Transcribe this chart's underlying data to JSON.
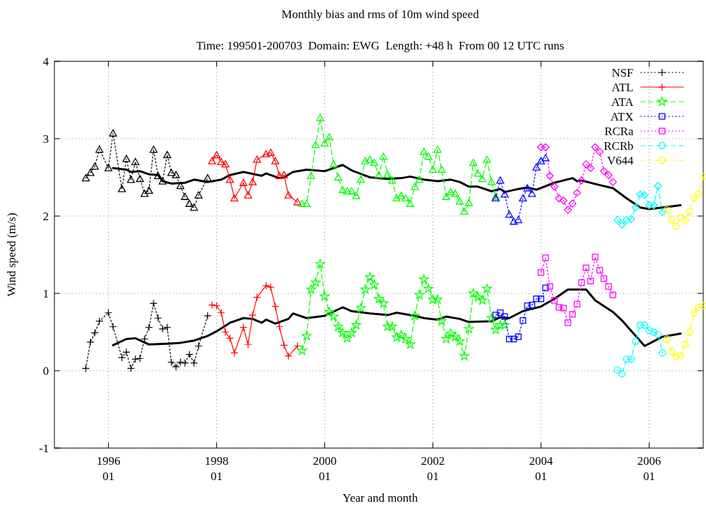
{
  "chart_data": {
    "type": "line",
    "title": "Monthly bias and rms of 10m wind speed",
    "subtitle": "Time: 199501-200703  Domain: EWG  Length: +48 h  From 00 12 UTC runs",
    "xlabel": "Year and month",
    "ylabel": "Wind speed (m/s)",
    "xlim": [
      "1995-01",
      "2007-01"
    ],
    "ylim": [
      -1,
      4
    ],
    "yticks": [
      -1,
      0,
      1,
      2,
      3,
      4
    ],
    "xticks": [
      {
        "value": "1996-01",
        "label": "1996\n01"
      },
      {
        "value": "1998-01",
        "label": "1998\n01"
      },
      {
        "value": "2000-01",
        "label": "2000\n01"
      },
      {
        "value": "2002-01",
        "label": "2002\n01"
      },
      {
        "value": "2004-01",
        "label": "2004\n01"
      },
      {
        "value": "2006-01",
        "label": "2006\n01"
      }
    ],
    "grid": true,
    "legend": "top right",
    "series": [
      {
        "name": "NSF",
        "color": "#000000",
        "marker": "cross",
        "line_style": "dotted",
        "x": [
          "1995-08",
          "1995-09",
          "1995-10",
          "1995-11",
          "1996-01",
          "1996-02",
          "1996-04",
          "1996-05",
          "1996-06",
          "1996-07",
          "1996-08",
          "1996-09",
          "1996-10",
          "1996-11",
          "1996-12",
          "1997-01",
          "1997-02",
          "1997-03",
          "1997-04",
          "1997-05",
          "1997-06",
          "1997-07",
          "1997-08",
          "1997-09",
          "1997-11"
        ],
        "values": [
          0.03,
          0.37,
          0.49,
          0.64,
          0.75,
          0.57,
          0.17,
          0.24,
          0.03,
          0.15,
          0.16,
          0.41,
          0.56,
          0.87,
          0.68,
          0.54,
          0.56,
          0.11,
          0.05,
          0.11,
          0.1,
          0.21,
          0.1,
          0.32,
          0.71
        ]
      },
      {
        "color": "#000000",
        "marker": "triangle",
        "line_style": "dotted",
        "x": [
          "1995-08",
          "1995-09",
          "1995-10",
          "1995-11",
          "1996-01",
          "1996-02",
          "1996-04",
          "1996-05",
          "1996-06",
          "1996-07",
          "1996-08",
          "1996-09",
          "1996-10",
          "1996-11",
          "1996-12",
          "1997-01",
          "1997-02",
          "1997-03",
          "1997-04",
          "1997-05",
          "1997-06",
          "1997-07",
          "1997-08",
          "1997-09",
          "1997-11"
        ],
        "values": [
          2.49,
          2.56,
          2.64,
          2.86,
          2.62,
          3.07,
          2.35,
          2.74,
          2.47,
          2.7,
          2.48,
          2.29,
          2.33,
          2.86,
          2.52,
          2.45,
          2.79,
          2.56,
          2.53,
          2.39,
          2.25,
          2.16,
          2.11,
          2.27,
          2.49
        ]
      },
      {
        "name": "ATL",
        "color": "#ff0000",
        "marker": "cross",
        "line_style": "solid",
        "x": [
          "1997-12",
          "1998-01",
          "1998-02",
          "1998-03",
          "1998-04",
          "1998-05",
          "1998-07",
          "1998-08",
          "1998-09",
          "1998-10",
          "1998-12",
          "1999-01",
          "1999-02",
          "1999-03",
          "1999-04",
          "1999-05",
          "1999-07"
        ],
        "values": [
          0.85,
          0.84,
          0.75,
          0.5,
          0.42,
          0.23,
          0.56,
          0.34,
          0.72,
          0.95,
          1.1,
          1.08,
          0.83,
          0.57,
          0.33,
          0.19,
          0.32
        ]
      },
      {
        "color": "#ff0000",
        "marker": "triangle",
        "line_style": "solid",
        "x": [
          "1997-12",
          "1998-01",
          "1998-02",
          "1998-03",
          "1998-04",
          "1998-05",
          "1998-07",
          "1998-08",
          "1998-09",
          "1998-10",
          "1998-12",
          "1999-01",
          "1999-02",
          "1999-03",
          "1999-04",
          "1999-05",
          "1999-07"
        ],
        "values": [
          2.71,
          2.79,
          2.7,
          2.67,
          2.47,
          2.23,
          2.43,
          2.27,
          2.44,
          2.73,
          2.8,
          2.82,
          2.71,
          2.52,
          2.53,
          2.27,
          2.18
        ]
      },
      {
        "name": "ATA",
        "color": "#00ff00",
        "marker": "star",
        "line_style": "dashed",
        "x": [
          "1999-08",
          "1999-09",
          "1999-10",
          "1999-11",
          "1999-12",
          "2000-01",
          "2000-02",
          "2000-03",
          "2000-04",
          "2000-05",
          "2000-06",
          "2000-07",
          "2000-08",
          "2000-09",
          "2000-10",
          "2000-11",
          "2000-12",
          "2001-01",
          "2001-02",
          "2001-03",
          "2001-04",
          "2001-05",
          "2001-06",
          "2001-07",
          "2001-08",
          "2001-09",
          "2001-10",
          "2001-11",
          "2001-12",
          "2002-01",
          "2002-02",
          "2002-03",
          "2002-04",
          "2002-05",
          "2002-06",
          "2002-07",
          "2002-08",
          "2002-09",
          "2002-10",
          "2002-11",
          "2002-12",
          "2003-01",
          "2003-02",
          "2003-03",
          "2003-04",
          "2003-05"
        ],
        "values": [
          0.26,
          0.45,
          1.05,
          1.14,
          1.38,
          0.96,
          0.76,
          0.7,
          0.57,
          0.49,
          0.42,
          0.49,
          0.59,
          0.81,
          1.05,
          1.21,
          1.11,
          0.93,
          0.87,
          0.57,
          0.57,
          0.43,
          0.46,
          0.41,
          0.34,
          0.71,
          0.98,
          1.18,
          1.06,
          0.92,
          0.92,
          0.64,
          0.41,
          0.48,
          0.44,
          0.38,
          0.19,
          0.54,
          1.0,
          0.95,
          0.91,
          1.06,
          0.68,
          0.53,
          0.59,
          0.59
        ]
      },
      {
        "color": "#00ff00",
        "marker": "triangle",
        "line_style": "dashed",
        "x": [
          "1999-08",
          "1999-09",
          "1999-10",
          "1999-11",
          "1999-12",
          "2000-01",
          "2000-02",
          "2000-03",
          "2000-04",
          "2000-05",
          "2000-06",
          "2000-07",
          "2000-08",
          "2000-09",
          "2000-10",
          "2000-11",
          "2000-12",
          "2001-01",
          "2001-02",
          "2001-03",
          "2001-04",
          "2001-05",
          "2001-06",
          "2001-07",
          "2001-08",
          "2001-09",
          "2001-10",
          "2001-11",
          "2001-12",
          "2002-01",
          "2002-02",
          "2002-03",
          "2002-04",
          "2002-05",
          "2002-06",
          "2002-07",
          "2002-08",
          "2002-09",
          "2002-10",
          "2002-11",
          "2002-12",
          "2003-01",
          "2003-02",
          "2003-03"
        ],
        "values": [
          2.16,
          2.16,
          2.52,
          2.92,
          3.27,
          2.94,
          3.02,
          2.67,
          2.5,
          2.34,
          2.32,
          2.32,
          2.26,
          2.47,
          2.71,
          2.73,
          2.69,
          2.53,
          2.77,
          2.54,
          2.46,
          2.23,
          2.26,
          2.23,
          2.16,
          2.38,
          2.47,
          2.83,
          2.77,
          2.6,
          2.86,
          2.6,
          2.25,
          2.31,
          2.29,
          2.19,
          2.06,
          2.17,
          2.69,
          2.55,
          2.48,
          2.73,
          2.44,
          2.25
        ]
      },
      {
        "name": "ATX",
        "color": "#0000ff",
        "marker": "square",
        "line_style": "dotted",
        "x": [
          "2003-03",
          "2003-04",
          "2003-05",
          "2003-06",
          "2003-07",
          "2003-08",
          "2003-09",
          "2003-10",
          "2003-11",
          "2003-12",
          "2004-01",
          "2004-02"
        ],
        "values": [
          0.72,
          0.75,
          0.7,
          0.41,
          0.41,
          0.44,
          0.65,
          0.84,
          0.85,
          0.93,
          0.93,
          1.07
        ]
      },
      {
        "color": "#0000ff",
        "marker": "triangle",
        "line_style": "dotted",
        "x": [
          "2003-03",
          "2003-04",
          "2003-05",
          "2003-06",
          "2003-07",
          "2003-08",
          "2003-09",
          "2003-10",
          "2003-11",
          "2003-12",
          "2004-01",
          "2004-02"
        ],
        "values": [
          2.23,
          2.46,
          2.28,
          2.02,
          1.93,
          1.95,
          2.23,
          2.36,
          2.29,
          2.63,
          2.71,
          2.75
        ]
      },
      {
        "name": "RCRa",
        "color": "#ff00ff",
        "marker": "square",
        "line_style": "dotted",
        "x": [
          "2004-01",
          "2004-02",
          "2004-03",
          "2004-04",
          "2004-05",
          "2004-06",
          "2004-07",
          "2004-08",
          "2004-09",
          "2004-10",
          "2004-11",
          "2004-12",
          "2005-01",
          "2005-02",
          "2005-03",
          "2005-04",
          "2005-05"
        ],
        "values": [
          1.27,
          1.46,
          1.09,
          0.91,
          0.82,
          0.81,
          0.62,
          0.73,
          0.86,
          1.14,
          1.33,
          1.16,
          1.47,
          1.3,
          1.19,
          1.09,
          0.98
        ]
      },
      {
        "color": "#ff00ff",
        "marker": "diamond",
        "line_style": "dotted",
        "x": [
          "2004-01",
          "2004-02",
          "2004-03",
          "2004-04",
          "2004-05",
          "2004-06",
          "2004-07",
          "2004-08",
          "2004-09",
          "2004-10",
          "2004-11",
          "2004-12",
          "2005-01",
          "2005-02",
          "2005-03",
          "2005-04",
          "2005-05"
        ],
        "values": [
          2.89,
          2.89,
          2.52,
          2.38,
          2.23,
          2.2,
          2.08,
          2.16,
          2.3,
          2.46,
          2.67,
          2.62,
          2.89,
          2.83,
          2.58,
          2.53,
          2.44
        ]
      },
      {
        "name": "RCRb",
        "color": "#00ffff",
        "marker": "circle",
        "line_style": "dashed",
        "x": [
          "2005-06",
          "2005-07",
          "2005-08",
          "2005-09",
          "2005-10",
          "2005-11",
          "2005-12",
          "2006-01",
          "2006-02",
          "2006-03",
          "2006-04"
        ],
        "values": [
          0.01,
          -0.04,
          0.15,
          0.15,
          0.38,
          0.59,
          0.59,
          0.52,
          0.5,
          0.47,
          0.23
        ]
      },
      {
        "color": "#00ffff",
        "marker": "diamond",
        "line_style": "dashed",
        "x": [
          "2005-06",
          "2005-07",
          "2005-08",
          "2005-09",
          "2005-10",
          "2005-11",
          "2005-12",
          "2006-01",
          "2006-02",
          "2006-03",
          "2006-04"
        ],
        "values": [
          1.95,
          1.89,
          1.95,
          1.96,
          2.11,
          2.28,
          2.27,
          2.14,
          2.14,
          2.39,
          2.05
        ]
      },
      {
        "name": "V644",
        "color": "#ffff00",
        "marker": "circle",
        "line_style": "dashed",
        "x": [
          "2006-05",
          "2006-06",
          "2006-07",
          "2006-08",
          "2006-09",
          "2006-10",
          "2006-11",
          "2006-12",
          "2007-01"
        ],
        "values": [
          0.41,
          0.25,
          0.18,
          0.2,
          0.34,
          0.5,
          0.75,
          0.82,
          0.84
        ]
      },
      {
        "color": "#ffff00",
        "marker": "circle",
        "line_style": "dashed",
        "x": [
          "2006-05",
          "2006-06",
          "2006-07",
          "2006-08",
          "2006-09",
          "2006-10",
          "2006-11",
          "2006-12",
          "2007-01"
        ],
        "values": [
          2.08,
          1.95,
          1.87,
          1.98,
          1.95,
          2.06,
          2.23,
          2.29,
          2.51
        ]
      },
      {
        "color": "#000000",
        "marker": "none",
        "line_style": "solid",
        "x": [
          "1996-02",
          "1996-05",
          "1996-06",
          "1996-08",
          "1996-10",
          "1996-12",
          "1997-01",
          "1997-03",
          "1997-06",
          "1997-08",
          "1997-11",
          "1998-02",
          "1998-04",
          "1998-07",
          "1998-11",
          "1998-12",
          "1999-03",
          "1999-04",
          "1999-06",
          "1999-09",
          "2000-01",
          "2000-05",
          "2000-07",
          "2000-11",
          "2001-03",
          "2001-06",
          "2001-08",
          "2001-11",
          "2002-02",
          "2002-05",
          "2002-07",
          "2002-09",
          "2002-11",
          "2003-02",
          "2003-04",
          "2003-05",
          "2003-08",
          "2003-10",
          "2003-12",
          "2004-04",
          "2004-08",
          "2004-09",
          "2004-10",
          "2005-02",
          "2005-05",
          "2005-08",
          "2005-11",
          "2006-01",
          "2006-04",
          "2006-08"
        ],
        "values": [
          2.62,
          2.6,
          2.57,
          2.58,
          2.54,
          2.53,
          2.45,
          2.42,
          2.43,
          2.47,
          2.44,
          2.47,
          2.53,
          2.57,
          2.52,
          2.55,
          2.49,
          2.5,
          2.57,
          2.6,
          2.58,
          2.66,
          2.59,
          2.5,
          2.48,
          2.49,
          2.51,
          2.47,
          2.45,
          2.47,
          2.44,
          2.38,
          2.38,
          2.32,
          2.35,
          2.31,
          2.35,
          2.37,
          2.34,
          2.43,
          2.49,
          2.45,
          2.46,
          2.4,
          2.36,
          2.23,
          2.11,
          2.09,
          2.11,
          2.14
        ]
      },
      {
        "color": "#000000",
        "marker": "none",
        "line_style": "solid",
        "x": [
          "1996-02",
          "1996-05",
          "1996-07",
          "1996-10",
          "1997-02",
          "1997-05",
          "1997-08",
          "1997-11",
          "1998-01",
          "1998-04",
          "1998-07",
          "1998-09",
          "1998-11",
          "1998-12",
          "1999-02",
          "1999-05",
          "1999-06",
          "1999-09",
          "2000-01",
          "2000-05",
          "2000-07",
          "2000-11",
          "2001-03",
          "2001-05",
          "2001-09",
          "2001-11",
          "2002-02",
          "2002-04",
          "2002-07",
          "2002-09",
          "2003-02",
          "2003-04",
          "2003-06",
          "2003-09",
          "2004-01",
          "2004-04",
          "2004-07",
          "2004-08",
          "2004-11",
          "2005-01",
          "2005-05",
          "2005-07",
          "2005-12",
          "2006-01",
          "2006-04",
          "2006-08"
        ],
        "values": [
          0.33,
          0.41,
          0.42,
          0.34,
          0.35,
          0.36,
          0.39,
          0.45,
          0.51,
          0.62,
          0.68,
          0.67,
          0.62,
          0.66,
          0.61,
          0.67,
          0.74,
          0.68,
          0.71,
          0.82,
          0.77,
          0.74,
          0.72,
          0.75,
          0.71,
          0.68,
          0.66,
          0.7,
          0.67,
          0.63,
          0.64,
          0.69,
          0.68,
          0.77,
          0.83,
          0.93,
          1.05,
          1.05,
          1.05,
          0.91,
          0.76,
          0.65,
          0.32,
          0.35,
          0.44,
          0.48
        ]
      }
    ]
  }
}
